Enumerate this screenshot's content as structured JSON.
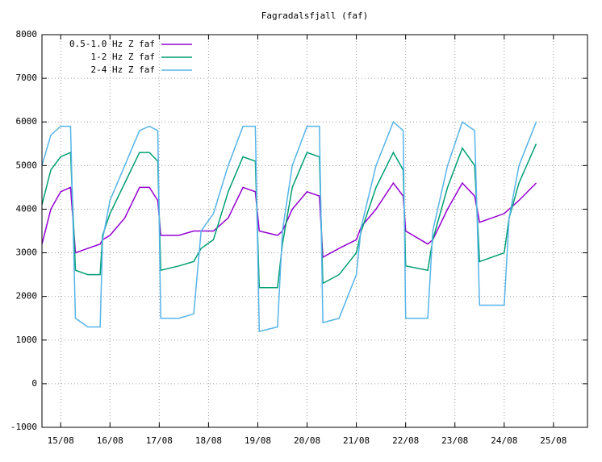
{
  "chart_data": {
    "type": "line",
    "title": "Fagradalsfjall (faf)",
    "x": [
      14.62,
      14.8,
      15.0,
      15.2,
      15.3,
      15.55,
      15.8,
      15.85,
      16.0,
      16.3,
      16.6,
      16.8,
      16.97,
      17.03,
      17.4,
      17.7,
      17.85,
      18.1,
      18.4,
      18.7,
      18.95,
      19.03,
      19.4,
      19.5,
      19.7,
      20.0,
      20.25,
      20.32,
      20.65,
      21.0,
      21.1,
      21.4,
      21.75,
      21.95,
      22.0,
      22.45,
      22.55,
      22.85,
      23.15,
      23.4,
      23.5,
      24.0,
      24.1,
      24.3,
      24.65
    ],
    "series": [
      {
        "name": "0.5-1.0 Hz Z faf",
        "color": "#9400d3",
        "values": [
          3200,
          4000,
          4400,
          4500,
          3000,
          3100,
          3200,
          3300,
          3400,
          3800,
          4500,
          4500,
          4200,
          3400,
          3400,
          3500,
          3500,
          3500,
          3800,
          4500,
          4400,
          3500,
          3400,
          3500,
          4000,
          4400,
          4300,
          2900,
          3100,
          3300,
          3600,
          4000,
          4600,
          4300,
          3500,
          3200,
          3300,
          4000,
          4600,
          4300,
          3700,
          3900,
          4000,
          4200,
          4600
        ]
      },
      {
        "name": "1-2 Hz Z faf",
        "color": "#009e73",
        "values": [
          4100,
          4900,
          5200,
          5300,
          2600,
          2500,
          2500,
          3400,
          3900,
          4600,
          5300,
          5300,
          5100,
          2600,
          2700,
          2800,
          3100,
          3300,
          4400,
          5200,
          5100,
          2200,
          2200,
          3200,
          4500,
          5300,
          5200,
          2300,
          2500,
          3000,
          3500,
          4500,
          5300,
          4900,
          2700,
          2600,
          3300,
          4500,
          5400,
          5000,
          2800,
          3000,
          3800,
          4600,
          5500
        ]
      },
      {
        "name": "2-4 Hz Z faf",
        "color": "#56b4e9",
        "values": [
          5000,
          5700,
          5900,
          5900,
          1500,
          1300,
          1300,
          3300,
          4200,
          5000,
          5800,
          5900,
          5800,
          1500,
          1500,
          1600,
          3500,
          3900,
          5000,
          5900,
          5900,
          1200,
          1300,
          3500,
          5000,
          5900,
          5900,
          1400,
          1500,
          2500,
          3600,
          5000,
          6000,
          5800,
          1500,
          1500,
          3500,
          5000,
          6000,
          5800,
          1800,
          1800,
          3800,
          5000,
          6000
        ]
      }
    ],
    "xlim": [
      14.62,
      25.69
    ],
    "xticks": [
      {
        "value": 15,
        "label": "15/08"
      },
      {
        "value": 16,
        "label": "16/08"
      },
      {
        "value": 17,
        "label": "17/08"
      },
      {
        "value": 18,
        "label": "18/08"
      },
      {
        "value": 19,
        "label": "19/08"
      },
      {
        "value": 20,
        "label": "20/08"
      },
      {
        "value": 21,
        "label": "21/08"
      },
      {
        "value": 22,
        "label": "22/08"
      },
      {
        "value": 23,
        "label": "23/08"
      },
      {
        "value": 24,
        "label": "24/08"
      },
      {
        "value": 25,
        "label": "25/08"
      }
    ],
    "ylim": [
      -1000,
      8000
    ],
    "yticks": [
      -1000,
      0,
      1000,
      2000,
      3000,
      4000,
      5000,
      6000,
      7000,
      8000
    ],
    "grid": true,
    "legend": "top-left"
  }
}
